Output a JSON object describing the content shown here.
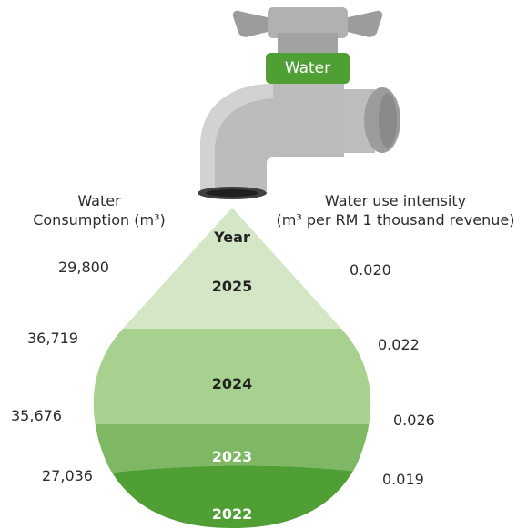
{
  "tap_label": "Water",
  "left_header": {
    "line1": "Water",
    "line2": "Consumption (m³)"
  },
  "right_header": {
    "line1": "Water use intensity",
    "line2": "(m³ per RM 1 thousand revenue)"
  },
  "year_header": "Year",
  "chart_data": {
    "type": "table",
    "categories": [
      "2025",
      "2024",
      "2023",
      "2022"
    ],
    "series": [
      {
        "name": "Water Consumption (m³)",
        "values": [
          29800,
          36719,
          35676,
          27036
        ],
        "labels": [
          "29,800",
          "36,719",
          "35,676",
          "27,036"
        ]
      },
      {
        "name": "Water use intensity (m³ per RM 1 thousand revenue)",
        "values": [
          0.02,
          0.022,
          0.026,
          0.019
        ],
        "labels": [
          "0.020",
          "0.022",
          "0.026",
          "0.019"
        ]
      }
    ],
    "colors": {
      "2025": "#d3e6c6",
      "2024": "#a8d18f",
      "2023": "#7fb865",
      "2022": "#4f9f34"
    }
  }
}
